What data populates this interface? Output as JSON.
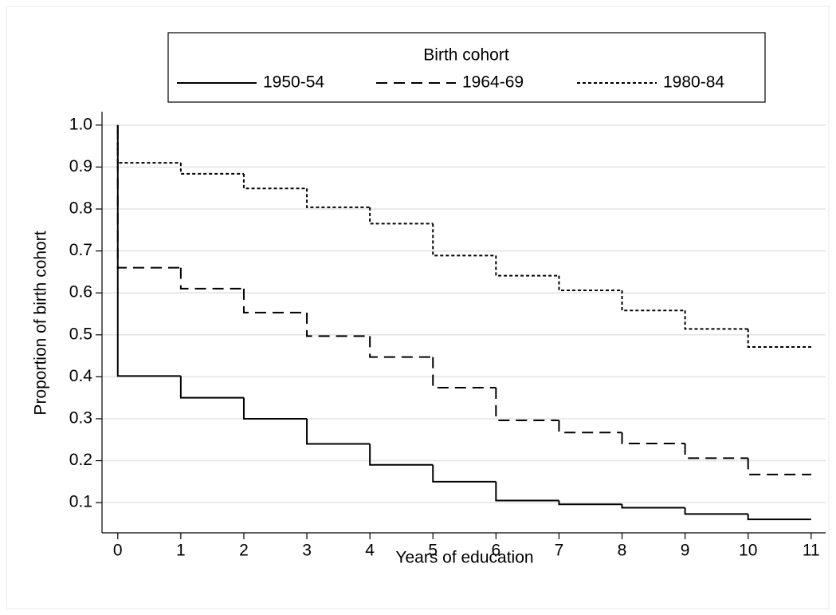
{
  "chart_data": {
    "type": "step",
    "x_label": "Years of education",
    "y_label": "Proportion of birth cohort",
    "legend_title": "Birth cohort",
    "legend_position": "top",
    "x": [
      0,
      0,
      1,
      2,
      3,
      4,
      5,
      6,
      7,
      8,
      9,
      10,
      11
    ],
    "series": [
      {
        "name": "1950-54",
        "color": "#000000",
        "dash": "solid",
        "values": [
          1.0,
          0.402,
          0.35,
          0.3,
          0.24,
          0.19,
          0.15,
          0.105,
          0.096,
          0.088,
          0.073,
          0.06,
          0.06
        ]
      },
      {
        "name": "1964-69",
        "color": "#000000",
        "dash": "dashed",
        "values": [
          1.0,
          0.66,
          0.61,
          0.553,
          0.497,
          0.447,
          0.374,
          0.296,
          0.267,
          0.241,
          0.206,
          0.167,
          0.167
        ]
      },
      {
        "name": "1980-84",
        "color": "#000000",
        "dash": "dotted",
        "values": [
          1.0,
          0.91,
          0.884,
          0.849,
          0.804,
          0.765,
          0.689,
          0.641,
          0.606,
          0.558,
          0.514,
          0.471,
          0.471
        ]
      }
    ],
    "xlim": [
      -0.25,
      11.23
    ],
    "xticks": [
      0,
      1,
      2,
      3,
      4,
      5,
      6,
      7,
      8,
      9,
      10,
      11
    ],
    "ylim": [
      0.028,
      1.032
    ],
    "yticks": [
      0.1,
      0.2,
      0.3,
      0.4,
      0.5,
      0.6,
      0.7,
      0.8,
      0.9,
      {
        "value": 1,
        "label": "1.0"
      }
    ],
    "grid": true
  }
}
